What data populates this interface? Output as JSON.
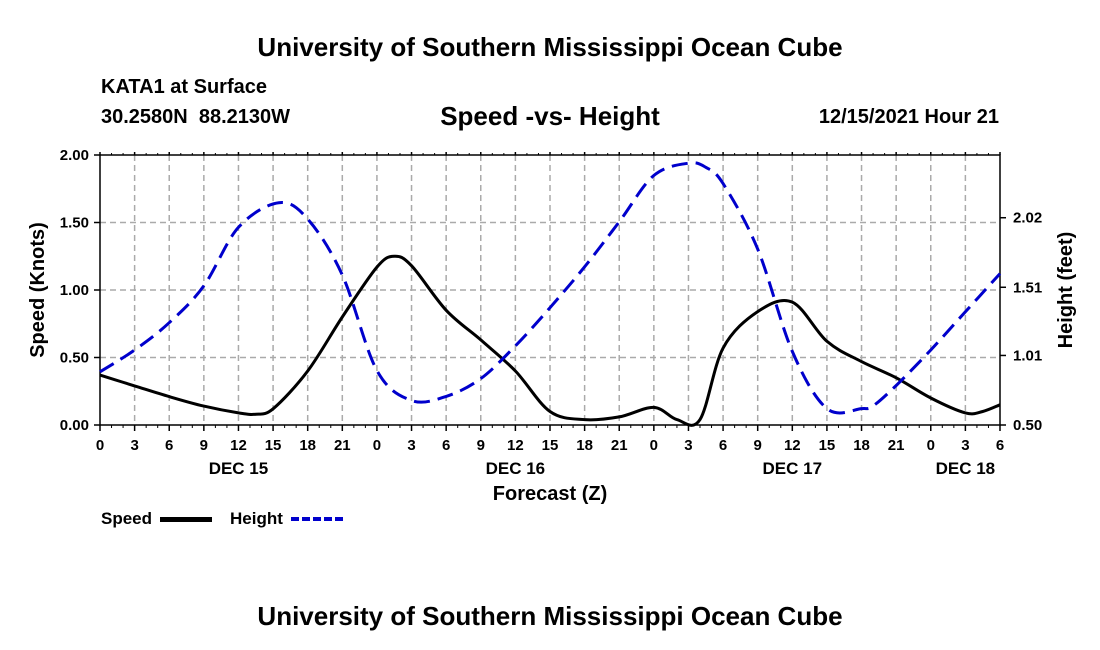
{
  "header": {
    "title": "University of Southern Mississippi Ocean Cube",
    "station": "KATA1 at Surface",
    "coords": "30.2580N  88.2130W",
    "subtitle": "Speed -vs- Height",
    "datetime": "12/15/2021 Hour 21"
  },
  "footer": {
    "title": "University of Southern Mississippi Ocean Cube"
  },
  "legend": {
    "speed_label": "Speed",
    "height_label": "Height"
  },
  "colors": {
    "speed": "#000000",
    "height": "#0000cc",
    "grid": "#aaaaaa"
  },
  "chart_data": {
    "type": "line",
    "title": "Speed -vs- Height",
    "xlabel": "Forecast (Z)",
    "ylabel": "Speed (Knots)",
    "y2label": "Height (feet)",
    "x_unit": "forecast hour from DEC 15 00Z",
    "xlim": [
      0,
      78
    ],
    "ylim": [
      0,
      2
    ],
    "y_ticks": [
      "0.00",
      "0.50",
      "1.00",
      "1.50",
      "2.00"
    ],
    "y_tick_values": [
      0,
      0.5,
      1,
      1.5,
      2
    ],
    "y2_ticks": [
      "0.50",
      "1.01",
      "1.51",
      "2.02"
    ],
    "y2_tick_values": [
      0.5,
      1.01,
      1.51,
      2.02
    ],
    "y2lim": [
      0.5,
      2.48
    ],
    "x_tick_labels": [
      "0",
      "3",
      "6",
      "9",
      "12",
      "15",
      "18",
      "21",
      "0",
      "3",
      "6",
      "9",
      "12",
      "15",
      "18",
      "21",
      "0",
      "3",
      "6",
      "9",
      "12",
      "15",
      "18",
      "21",
      "0",
      "3",
      "6"
    ],
    "x_tick_values": [
      0,
      3,
      6,
      9,
      12,
      15,
      18,
      21,
      24,
      27,
      30,
      33,
      36,
      39,
      42,
      45,
      48,
      51,
      54,
      57,
      60,
      63,
      66,
      69,
      72,
      75,
      78
    ],
    "day_labels": [
      {
        "label": "DEC 15",
        "x": 12
      },
      {
        "label": "DEC 16",
        "x": 36
      },
      {
        "label": "DEC 17",
        "x": 60
      },
      {
        "label": "DEC 18",
        "x": 75
      }
    ],
    "grid": true,
    "legend_position": "bottom-left",
    "series": [
      {
        "name": "Speed",
        "axis": "left",
        "style": "solid",
        "x": [
          0,
          3,
          6,
          9,
          12,
          13.5,
          15,
          18,
          21,
          24,
          25.5,
          27,
          30,
          33,
          36,
          39,
          42,
          45,
          48,
          50,
          52,
          54,
          57,
          60,
          63,
          66,
          69,
          72,
          75,
          76.5,
          78
        ],
        "y": [
          0.37,
          0.29,
          0.21,
          0.14,
          0.09,
          0.08,
          0.12,
          0.4,
          0.8,
          1.17,
          1.25,
          1.18,
          0.85,
          0.63,
          0.4,
          0.1,
          0.04,
          0.06,
          0.13,
          0.04,
          0.04,
          0.57,
          0.84,
          0.91,
          0.62,
          0.47,
          0.35,
          0.2,
          0.09,
          0.1,
          0.15
        ]
      },
      {
        "name": "Height",
        "axis": "right",
        "style": "dashed",
        "x": [
          0,
          3,
          6,
          9,
          12,
          15.5,
          18,
          21,
          24,
          27,
          30,
          33,
          36,
          39,
          42,
          45,
          48,
          51,
          52.5,
          54,
          57,
          60,
          63,
          66,
          67,
          69,
          72,
          75,
          78
        ],
        "y": [
          0.89,
          1.05,
          1.25,
          1.52,
          1.95,
          2.13,
          2.01,
          1.6,
          0.9,
          0.68,
          0.71,
          0.84,
          1.08,
          1.36,
          1.66,
          1.99,
          2.33,
          2.42,
          2.39,
          2.27,
          1.79,
          1.04,
          0.62,
          0.62,
          0.64,
          0.79,
          1.05,
          1.33,
          1.61
        ]
      }
    ]
  }
}
